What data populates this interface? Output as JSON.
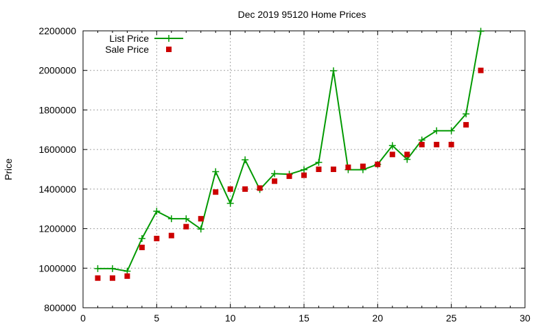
{
  "chart_data": {
    "type": "line",
    "title": "Dec 2019 95120 Home Prices",
    "xlabel": "",
    "ylabel": "Price",
    "xlim": [
      0,
      30
    ],
    "ylim": [
      800000,
      2200000
    ],
    "xticks": [
      "0",
      "5",
      "10",
      "15",
      "20",
      "25",
      "30"
    ],
    "yticks": [
      "800000",
      "1000000",
      "1200000",
      "1400000",
      "1600000",
      "1800000",
      "2000000",
      "2200000"
    ],
    "grid": true,
    "legend_position": "top-left",
    "series": [
      {
        "name": "List Price",
        "style": "line+cross",
        "color": "#009900",
        "x": [
          1,
          2,
          3,
          4,
          5,
          6,
          7,
          8,
          9,
          10,
          11,
          12,
          13,
          14,
          15,
          16,
          17,
          18,
          19,
          20,
          21,
          22,
          23,
          24,
          25,
          26,
          27
        ],
        "y": [
          998000,
          998000,
          985000,
          1150000,
          1288000,
          1250000,
          1250000,
          1198000,
          1488000,
          1328000,
          1548000,
          1398000,
          1478000,
          1475000,
          1498000,
          1535000,
          1998000,
          1498000,
          1498000,
          1525000,
          1620000,
          1550000,
          1648000,
          1695000,
          1695000,
          1780000,
          2198000
        ]
      },
      {
        "name": "Sale Price",
        "style": "square",
        "color": "#cc0000",
        "x": [
          1,
          2,
          3,
          4,
          5,
          6,
          7,
          8,
          9,
          10,
          11,
          12,
          13,
          14,
          15,
          16,
          17,
          18,
          19,
          20,
          21,
          22,
          23,
          24,
          25,
          26,
          27
        ],
        "y": [
          950000,
          950000,
          960000,
          1105000,
          1150000,
          1165000,
          1210000,
          1250000,
          1385000,
          1400000,
          1400000,
          1405000,
          1440000,
          1465000,
          1470000,
          1500000,
          1500000,
          1510000,
          1515000,
          1525000,
          1575000,
          1575000,
          1625000,
          1625000,
          1625000,
          1725000,
          2000000
        ]
      }
    ]
  }
}
